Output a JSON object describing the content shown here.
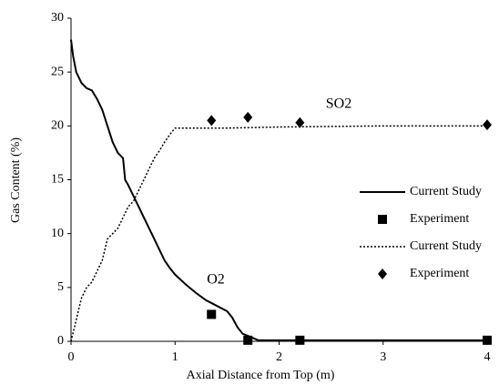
{
  "chart_data": {
    "type": "line",
    "xlabel": "Axial Distance from Top (m)",
    "ylabel": "Gas Content (%)",
    "xlim": [
      0,
      4
    ],
    "xticks": [
      0,
      1,
      2,
      3,
      4
    ],
    "ylim": [
      0,
      30
    ],
    "yticks": [
      0,
      5,
      10,
      15,
      20,
      25,
      30
    ],
    "grid": false,
    "legend": "center right",
    "annotations": [
      "SO2",
      "O2"
    ],
    "series": [
      {
        "name": "Current Study",
        "style": "line",
        "dash": "solid",
        "color": "#000000",
        "x": [
          0,
          0.02,
          0.05,
          0.1,
          0.15,
          0.2,
          0.25,
          0.3,
          0.35,
          0.4,
          0.45,
          0.5,
          0.52,
          0.55,
          0.6,
          0.65,
          0.7,
          0.75,
          0.8,
          0.85,
          0.9,
          0.95,
          1.0,
          1.1,
          1.2,
          1.3,
          1.4,
          1.5,
          1.55,
          1.6,
          1.65,
          1.7,
          1.75,
          1.8,
          1.9,
          2,
          3,
          4
        ],
        "values": [
          28,
          26.5,
          25,
          24,
          23.5,
          23.3,
          22.5,
          21.5,
          20,
          18.5,
          17.5,
          17,
          15,
          14.5,
          13.5,
          12.5,
          11.5,
          10.5,
          9.5,
          8.5,
          7.5,
          6.8,
          6.2,
          5.3,
          4.5,
          3.8,
          3.3,
          2.8,
          2.2,
          1.3,
          0.7,
          0.5,
          0.3,
          0.1,
          0.1,
          0.1,
          0.1,
          0.1
        ]
      },
      {
        "name": "Experiment",
        "style": "scatter",
        "marker": "square",
        "color": "#000000",
        "x": [
          1.35,
          1.7,
          2.2,
          4
        ],
        "values": [
          2.5,
          0.1,
          0.1,
          0.1
        ]
      },
      {
        "name": "Current Study",
        "style": "line",
        "dash": "dotted",
        "color": "#000000",
        "x": [
          0,
          0.05,
          0.1,
          0.15,
          0.2,
          0.25,
          0.3,
          0.35,
          0.4,
          0.45,
          0.5,
          0.55,
          0.6,
          0.65,
          0.7,
          0.75,
          0.8,
          0.85,
          0.9,
          0.95,
          1.0,
          1.5,
          2,
          3,
          4
        ],
        "values": [
          0,
          2,
          4,
          5,
          5.5,
          6.5,
          7.5,
          9.5,
          10,
          10.5,
          11.5,
          12.5,
          13,
          14,
          15,
          16,
          17,
          17.7,
          18.5,
          19.2,
          19.8,
          19.8,
          19.9,
          20,
          20
        ]
      },
      {
        "name": "Experiment",
        "style": "scatter",
        "marker": "diamond",
        "color": "#000000",
        "x": [
          1.35,
          1.7,
          2.2,
          4
        ],
        "values": [
          20.5,
          20.8,
          20.3,
          20.1
        ]
      }
    ]
  }
}
